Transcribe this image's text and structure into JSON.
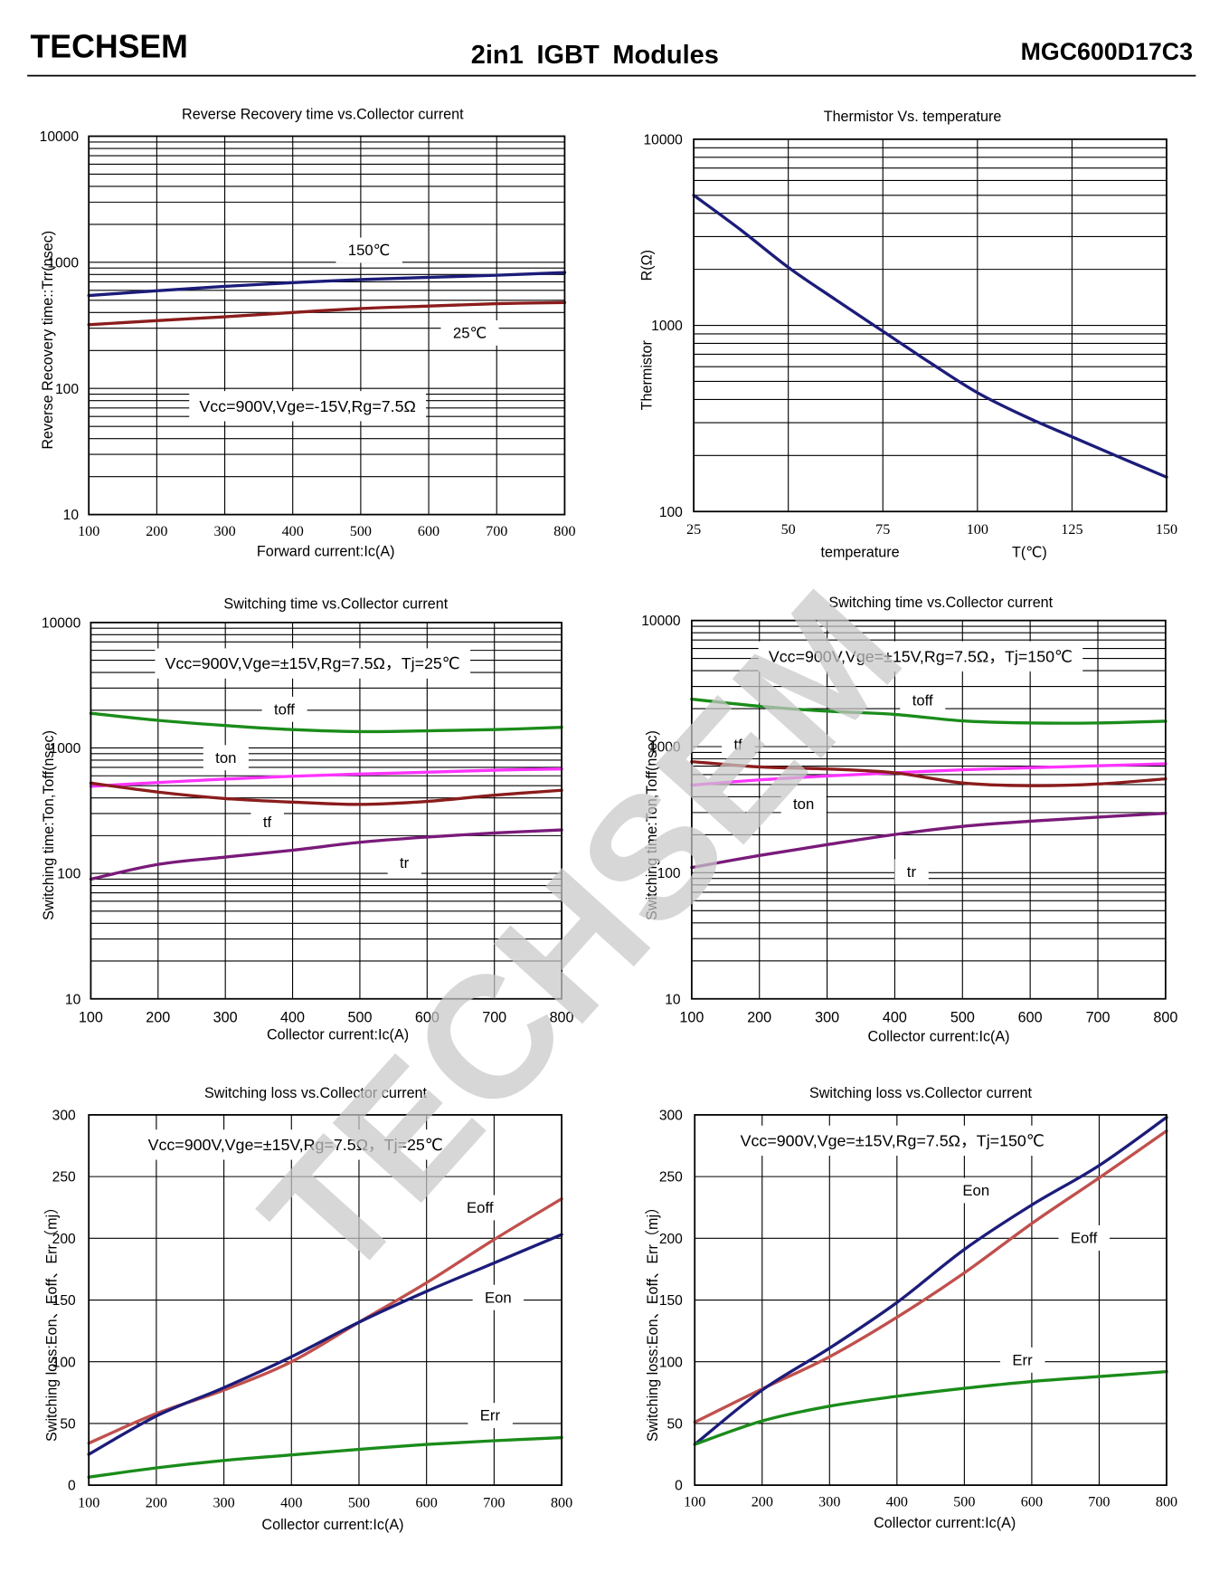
{
  "header": {
    "brand": "TECHSEM",
    "title": "2in1 IGBT Modules",
    "part_number": "MGC600D17C3"
  },
  "watermark": "TECHSEM",
  "chart_data": [
    {
      "type": "line",
      "title": "Reverse Recovery time vs.Collector current",
      "xlabel": "Forward current:Ic(A)",
      "ylabel": "Reverse Recovery time::Trr(nsec)",
      "yscale": "log",
      "xlim": [
        100,
        800
      ],
      "ylim": [
        10,
        10000
      ],
      "xticks": [
        100,
        200,
        300,
        400,
        500,
        600,
        700,
        800
      ],
      "yticks": [
        10000,
        1000,
        100,
        10
      ],
      "grid": true,
      "annotation": "Vcc=900V,Vge=-15V,Rg=7.5Ω",
      "x": [
        100,
        200,
        300,
        400,
        500,
        600,
        700,
        800
      ],
      "series": [
        {
          "name": "150℃",
          "color": "#1c1c7a",
          "values": [
            545,
            595,
            645,
            690,
            730,
            760,
            790,
            830
          ]
        },
        {
          "name": "25℃",
          "color": "#8b1c1c",
          "values": [
            320,
            345,
            370,
            400,
            430,
            450,
            470,
            480
          ]
        }
      ]
    },
    {
      "type": "line",
      "title": "Thermistor Vs. temperature",
      "xlabel": "temperature",
      "xunit": "T(℃)",
      "ylabel": "Thermistor",
      "yunit": "R(Ω)",
      "yscale": "log",
      "xlim": [
        25,
        150
      ],
      "ylim": [
        100,
        10000
      ],
      "xticks": [
        25,
        50,
        75,
        100,
        125,
        150
      ],
      "yticks": [
        10000,
        1000,
        100
      ],
      "grid": true,
      "x": [
        25,
        37.5,
        50,
        62.5,
        75,
        87.5,
        100,
        112.5,
        125,
        137.5,
        150
      ],
      "series": [
        {
          "color": "#1c1c7a",
          "values": [
            5000,
            3250,
            2050,
            1375,
            930,
            630,
            435,
            325,
            252,
            196,
            153
          ]
        }
      ]
    },
    {
      "type": "line",
      "title": "Switching time vs.Collector current",
      "xlabel": "Collector current:Ic(A)",
      "ylabel": "Switching time:Ton,Toff(nsec)",
      "yscale": "log",
      "xlim": [
        100,
        800
      ],
      "ylim": [
        10,
        10000
      ],
      "xticks": [
        100,
        200,
        300,
        400,
        500,
        600,
        700,
        800
      ],
      "yticks": [
        10000,
        1000,
        100,
        10
      ],
      "grid": true,
      "annotation": "Vcc=900V,Vge=±15V,Rg=7.5Ω，Tj=25℃",
      "x": [
        100,
        200,
        300,
        400,
        500,
        600,
        700,
        800
      ],
      "series": [
        {
          "name": "toff",
          "color": "#1a8c1a",
          "values": [
            1890,
            1660,
            1510,
            1400,
            1350,
            1370,
            1400,
            1460
          ]
        },
        {
          "name": "ton",
          "color": "#ff33ff",
          "values": [
            495,
            530,
            565,
            595,
            620,
            640,
            665,
            680
          ]
        },
        {
          "name": "tf",
          "color": "#8b1c1c",
          "values": [
            525,
            445,
            395,
            370,
            355,
            375,
            420,
            460
          ]
        },
        {
          "name": "tr",
          "color": "#7a1a7a",
          "values": [
            90,
            118,
            135,
            153,
            177,
            195,
            210,
            222
          ]
        }
      ]
    },
    {
      "type": "line",
      "title": "Switching time vs.Collector current",
      "xlabel": "Collector current:Ic(A)",
      "ylabel": "Switching time:Ton,Toff(nsec)",
      "yscale": "log",
      "xlim": [
        100,
        800
      ],
      "ylim": [
        10,
        10000
      ],
      "xticks": [
        100,
        200,
        300,
        400,
        500,
        600,
        700,
        800
      ],
      "yticks": [
        10000,
        1000,
        100,
        10
      ],
      "grid": true,
      "annotation": "Vcc=900V,Vge=±15V,Rg=7.5Ω，Tj=150℃",
      "x": [
        100,
        200,
        300,
        400,
        500,
        600,
        700,
        800
      ],
      "series": [
        {
          "name": "toff",
          "color": "#1a8c1a",
          "values": [
            2380,
            2090,
            1910,
            1800,
            1600,
            1540,
            1540,
            1590
          ]
        },
        {
          "name": "ton",
          "color": "#ff33ff",
          "values": [
            495,
            545,
            585,
            620,
            655,
            680,
            705,
            730
          ]
        },
        {
          "name": "tf",
          "color": "#8b1c1c",
          "values": [
            760,
            690,
            665,
            620,
            515,
            490,
            505,
            555
          ]
        },
        {
          "name": "tr",
          "color": "#7a1a7a",
          "values": [
            110,
            137,
            167,
            201,
            233,
            256,
            276,
            296
          ]
        }
      ]
    },
    {
      "type": "line",
      "title": "Switching loss vs.Collector current",
      "xlabel": "Collector current:Ic(A)",
      "ylabel": "Switching loss:Eon、Eoff、Err（mj）",
      "yscale": "linear",
      "xlim": [
        100,
        800
      ],
      "ylim": [
        0,
        300
      ],
      "xticks": [
        100,
        200,
        300,
        400,
        500,
        600,
        700,
        800
      ],
      "yticks": [
        300,
        250,
        200,
        150,
        100,
        50,
        0
      ],
      "grid": true,
      "annotation": "Vcc=900V,Vge=±15V,Rg=7.5Ω，Tj=25℃",
      "x": [
        100,
        200,
        300,
        400,
        500,
        600,
        700,
        800
      ],
      "series": [
        {
          "name": "Eoff",
          "color": "#c0504d",
          "values": [
            34,
            58,
            77,
            100,
            132,
            164,
            199,
            232
          ]
        },
        {
          "name": "Eon",
          "color": "#1c1c7a",
          "values": [
            25,
            56,
            79,
            104,
            132,
            157,
            180,
            203
          ]
        },
        {
          "name": "Err",
          "color": "#1a8c1a",
          "values": [
            6.5,
            14,
            20,
            24.5,
            29,
            33,
            36,
            38.5
          ]
        }
      ]
    },
    {
      "type": "line",
      "title": "Switching loss vs.Collector current",
      "xlabel": "Collector current:Ic(A)",
      "ylabel": "Switching loss:Eon、Eoff、Err（mj）",
      "yscale": "linear",
      "xlim": [
        100,
        800
      ],
      "ylim": [
        0,
        300
      ],
      "xticks": [
        100,
        200,
        300,
        400,
        500,
        600,
        700,
        800
      ],
      "yticks": [
        300,
        250,
        200,
        150,
        100,
        50,
        0
      ],
      "grid": true,
      "annotation": "Vcc=900V,Vge=±15V,Rg=7.5Ω，Tj=150℃",
      "x": [
        100,
        200,
        300,
        400,
        500,
        600,
        700,
        800
      ],
      "series": [
        {
          "name": "Eoff",
          "color": "#c0504d",
          "values": [
            51,
            78,
            104,
            136,
            172,
            212,
            249,
            287
          ]
        },
        {
          "name": "Eon",
          "color": "#1c1c7a",
          "values": [
            33,
            77,
            111,
            148,
            191,
            227,
            259,
            298
          ]
        },
        {
          "name": "Err",
          "color": "#1a8c1a",
          "values": [
            33,
            52,
            64,
            72,
            78.5,
            84,
            88,
            92
          ]
        }
      ]
    }
  ]
}
